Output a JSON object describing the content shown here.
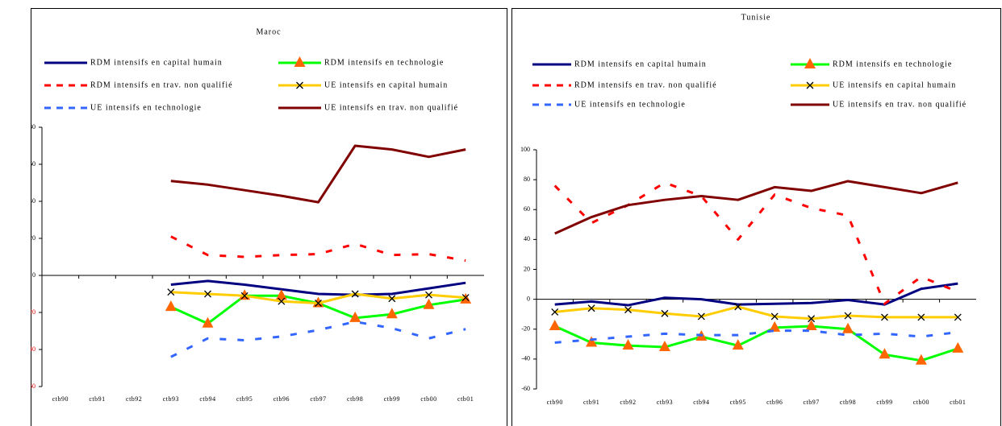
{
  "chart_data": [
    {
      "type": "line",
      "title": "Maroc",
      "categories": [
        "ctb90",
        "ctb91",
        "ctb92",
        "ctb93",
        "ctb94",
        "ctb95",
        "ctb96",
        "ctb97",
        "ctb98",
        "ctb99",
        "ctb00",
        "ctb01"
      ],
      "ylim": [
        -60,
        80
      ],
      "yticks": [
        -60,
        -40,
        -20,
        0,
        20,
        40,
        60,
        80
      ],
      "negative_tick_color": "#e00000",
      "series": [
        {
          "name": "RDM intensifs en capital humain",
          "color": "#000080",
          "values": [
            null,
            null,
            null,
            -5,
            -3,
            -5,
            -7.5,
            -10,
            -10.5,
            -10,
            -7,
            -4
          ]
        },
        {
          "name": "RDM intensifs en technologie",
          "color": "#00ff00",
          "marker": "triangle",
          "marker_color": "#ff6600",
          "values": [
            null,
            null,
            null,
            -17,
            -26,
            -11,
            -11,
            -15,
            -23,
            -21,
            -16,
            -13
          ]
        },
        {
          "name": "RDM intensifs en trav. non qualifié",
          "color": "#ff0000",
          "dash": true,
          "values": [
            null,
            null,
            null,
            21,
            11,
            10,
            11,
            11.5,
            17,
            11,
            11.5,
            8
          ]
        },
        {
          "name": "UE intensifs en capital humain",
          "color": "#ffcc00",
          "marker": "x",
          "marker_color": "#000000",
          "values": [
            null,
            null,
            null,
            -9,
            -10,
            -11,
            -14,
            -15,
            -10,
            -12.5,
            -10.5,
            -12
          ]
        },
        {
          "name": "UE intensifs en technologie",
          "color": "#3366ff",
          "dash": true,
          "values": [
            null,
            null,
            null,
            -44,
            -34,
            -35,
            -33,
            -29.5,
            -25,
            -28.5,
            -34,
            -29
          ]
        },
        {
          "name": "UE intensifs en trav. non qualifié",
          "color": "#800000",
          "values": [
            null,
            null,
            null,
            51,
            49,
            46,
            43,
            39.5,
            70,
            68,
            64,
            68
          ]
        }
      ]
    },
    {
      "type": "line",
      "title": "Tunisie",
      "categories": [
        "ctb90",
        "ctb91",
        "ctb92",
        "ctb93",
        "ctb94",
        "ctb95",
        "ctb96",
        "ctb97",
        "ctb98",
        "ctb99",
        "ctb00",
        "ctb01"
      ],
      "ylim": [
        -60,
        100
      ],
      "yticks": [
        -60,
        -40,
        -20,
        0,
        20,
        40,
        60,
        80,
        100
      ],
      "series": [
        {
          "name": "RDM intensifs en capital humain",
          "color": "#000080",
          "values": [
            -3.5,
            -1.5,
            -4,
            1,
            0,
            -3.5,
            -3,
            -2.5,
            -0.5,
            -3.5,
            7,
            10.5
          ]
        },
        {
          "name": "RDM intensifs en technologie",
          "color": "#00ff00",
          "marker": "triangle",
          "marker_color": "#ff6600",
          "values": [
            -18,
            -29,
            -31,
            -32,
            -25,
            -31,
            -19,
            -18,
            -20,
            -37,
            -41,
            -33
          ]
        },
        {
          "name": "RDM intensifs en trav. non qualifié",
          "color": "#ff0000",
          "dash": true,
          "values": [
            76,
            51,
            63,
            78,
            69,
            40,
            70,
            61,
            56,
            -3,
            15,
            5
          ]
        },
        {
          "name": "UE intensifs en capital humain",
          "color": "#ffcc00",
          "marker": "x",
          "marker_color": "#000000",
          "values": [
            -8.5,
            -6,
            -7,
            -9.5,
            -11.5,
            -5,
            -11.5,
            -13,
            -11,
            -12,
            -12,
            -12
          ]
        },
        {
          "name": "UE intensifs en technologie",
          "color": "#3366ff",
          "dash": true,
          "values": [
            -29,
            -27,
            -25,
            -23,
            -24,
            -24,
            -21,
            -21,
            -24,
            -23,
            -25,
            -22
          ]
        },
        {
          "name": "UE intensifs en trav. non qualifié",
          "color": "#800000",
          "values": [
            44,
            55,
            63,
            66.5,
            69,
            66.5,
            75,
            72.5,
            79,
            75,
            71,
            78
          ]
        }
      ]
    }
  ]
}
